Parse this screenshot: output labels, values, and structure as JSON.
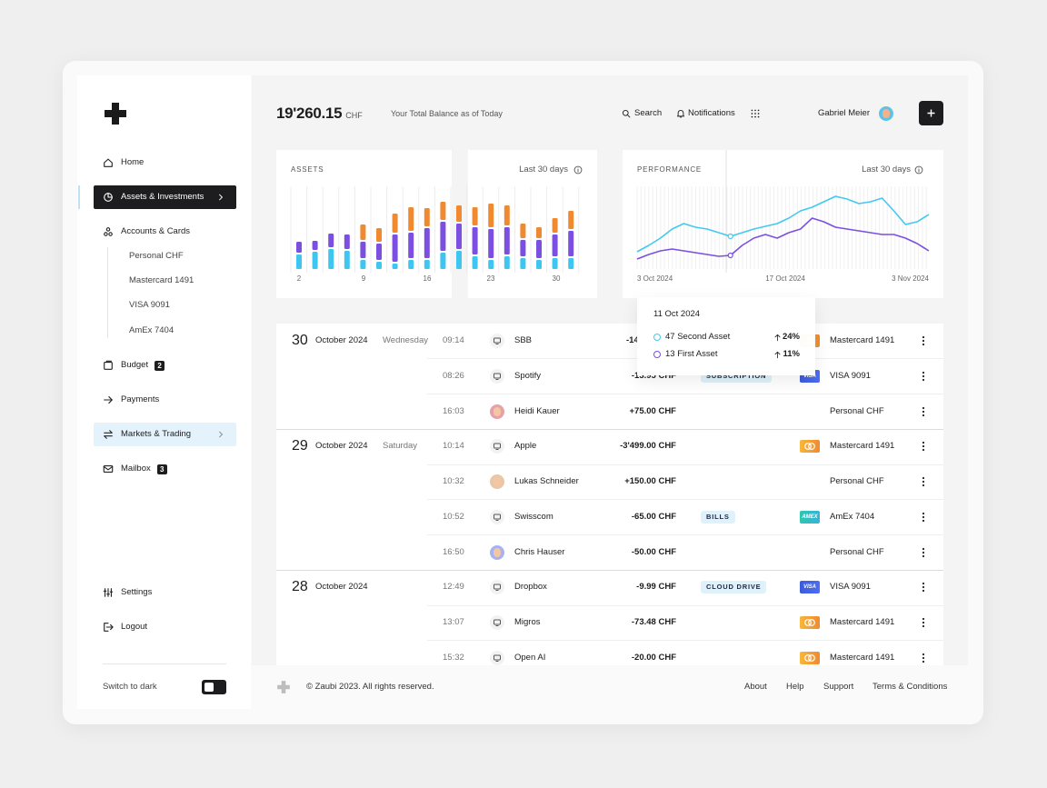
{
  "sidebar": {
    "nav": [
      "Home",
      "Assets & Investments",
      "Accounts & Cards"
    ],
    "accounts": [
      "Personal CHF",
      "Mastercard 1491",
      "VISA 9091",
      "AmEx 7404"
    ],
    "nav2": [
      {
        "label": "Budget",
        "badge": 2
      },
      {
        "label": "Payments"
      },
      {
        "label": "Markets & Trading"
      },
      {
        "label": "Mailbox",
        "badge": 3
      }
    ],
    "bottom": [
      "Settings",
      "Logout"
    ],
    "switch_label": "Switch to dark"
  },
  "header": {
    "balance": "19'260.15",
    "currency": "CHF",
    "balance_label": "Your Total Balance as of Today",
    "search": "Search",
    "notifications": "Notifications",
    "user": "Gabriel Meier"
  },
  "assets": {
    "title": "ASSETS",
    "period": "Last 30 days",
    "x_labels": [
      2,
      9,
      16,
      23,
      30
    ],
    "series": [
      {
        "color": "#3ec6f0",
        "values": [
          16,
          19,
          22,
          20,
          10,
          8,
          6,
          10,
          10,
          18,
          20,
          14,
          10,
          14,
          12,
          10,
          12,
          12
        ]
      },
      {
        "color": "#7b4fe0",
        "values": [
          12,
          10,
          15,
          16,
          18,
          18,
          30,
          28,
          33,
          32,
          28,
          30,
          32,
          30,
          18,
          20,
          24,
          28
        ]
      },
      {
        "color": "#f08a30",
        "values": [
          0,
          0,
          0,
          0,
          17,
          15,
          21,
          26,
          20,
          20,
          18,
          20,
          26,
          22,
          16,
          12,
          16,
          20
        ]
      }
    ]
  },
  "performance": {
    "title": "PERFORMANCE",
    "period": "Last 30 days",
    "x_labels": [
      "3 Oct 2024",
      "17 Oct 2024",
      "3 Nov 2024"
    ],
    "series": [
      {
        "color": "#45c8f0",
        "values": [
          23,
          30,
          38,
          48,
          54,
          50,
          48,
          44,
          40,
          44,
          48,
          51,
          54,
          60,
          68,
          72,
          78,
          84,
          81,
          76,
          78,
          82,
          68,
          53,
          56,
          64
        ]
      },
      {
        "color": "#7b4fe0",
        "values": [
          15,
          20,
          24,
          26,
          24,
          22,
          20,
          18,
          19,
          30,
          38,
          42,
          38,
          44,
          48,
          60,
          56,
          50,
          48,
          46,
          44,
          42,
          42,
          38,
          32,
          24
        ]
      }
    ]
  },
  "tooltip": {
    "date": "11 Oct 2024",
    "items": [
      {
        "label": "47 Second Asset",
        "change": "24%"
      },
      {
        "label": "13 First Asset",
        "change": "11%"
      }
    ]
  },
  "transactions": [
    {
      "day": 30,
      "month": "October 2024",
      "weekday": "Wednesday",
      "rows": [
        {
          "time": "09:14",
          "name": "SBB",
          "amount": "-14",
          "account": "Mastercard 1491"
        },
        {
          "time": "08:26",
          "name": "Spotify",
          "amount": "-13.95 CHF",
          "tag": "SUBSCRIPTION",
          "card_label": "VISA",
          "account": "VISA 9091"
        },
        {
          "time": "16:03",
          "name": "Heidi Kauer",
          "amount": "+75.00 CHF",
          "account": "Personal CHF"
        }
      ]
    },
    {
      "day": 29,
      "month": "October 2024",
      "weekday": "Saturday",
      "rows": [
        {
          "time": "10:14",
          "name": "Apple",
          "amount": "-3'499.00 CHF",
          "account": "Mastercard 1491"
        },
        {
          "time": "10:32",
          "name": "Lukas Schneider",
          "amount": "+150.00 CHF",
          "account": "Personal CHF"
        },
        {
          "time": "10:52",
          "name": "Swisscom",
          "amount": "-65.00 CHF",
          "tag": "BILLS",
          "card_label": "AMEX",
          "account": "AmEx 7404"
        },
        {
          "time": "16:50",
          "name": "Chris Hauser",
          "amount": "-50.00 CHF",
          "account": "Personal CHF"
        }
      ]
    },
    {
      "day": 28,
      "month": "October 2024",
      "rows": [
        {
          "time": "12:49",
          "name": "Dropbox",
          "amount": "-9.99 CHF",
          "tag": "CLOUD DRIVE",
          "card_label": "VISA",
          "account": "VISA 9091"
        },
        {
          "time": "13:07",
          "name": "Migros",
          "amount": "-73.48 CHF",
          "account": "Mastercard 1491"
        },
        {
          "time": "15:32",
          "name": "Open AI",
          "amount": "-20.00 CHF",
          "account": "Mastercard 1491"
        }
      ]
    }
  ],
  "footer": {
    "copyright": "© Zaubi 2023. All rights reserved.",
    "links": [
      "About",
      "Help",
      "Support",
      "Terms & Conditions"
    ]
  }
}
